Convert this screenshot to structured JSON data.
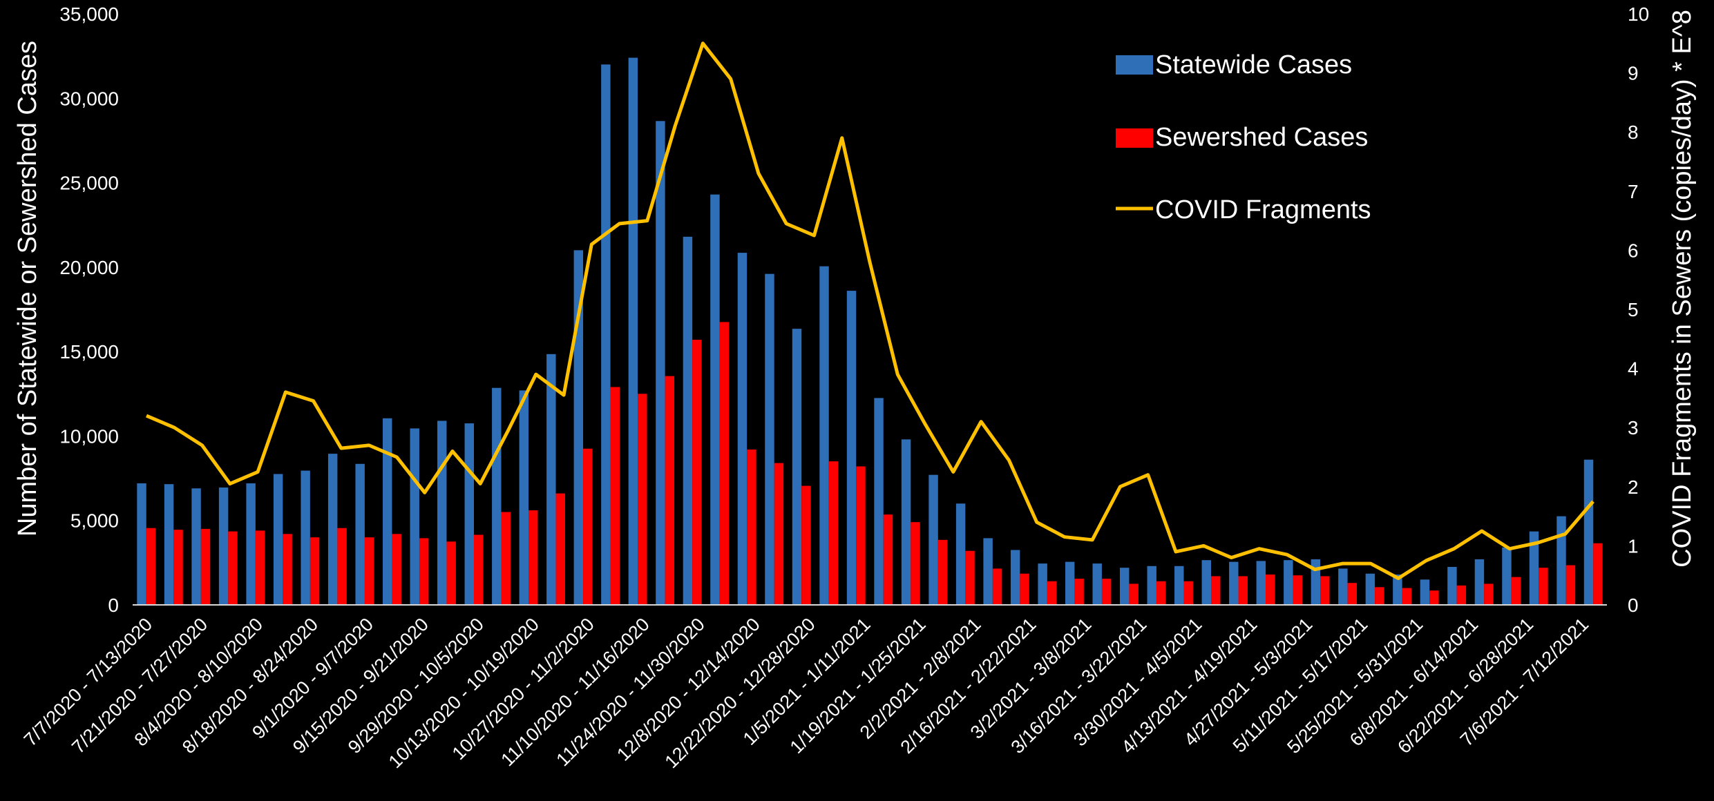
{
  "chart_data": {
    "type": "bar",
    "title": "",
    "y_left_label": "Number of Statewide or Sewershed Cases",
    "y_right_label": "COVID Fragments in Sewers (copies/day) * E^8",
    "y_left_range": [
      0,
      35000
    ],
    "y_left_ticks": [
      "0",
      "5,000",
      "10,000",
      "15,000",
      "20,000",
      "25,000",
      "30,000",
      "35,000"
    ],
    "y_right_range": [
      0,
      10
    ],
    "y_right_ticks": [
      "0",
      "1",
      "2",
      "3",
      "4",
      "5",
      "6",
      "7",
      "8",
      "9",
      "10"
    ],
    "grid": false,
    "legend_position": "top-right",
    "colors": {
      "statewide": "#2e6fb7",
      "sewershed": "#ff0000",
      "fragments": "#ffc000",
      "background": "#000000",
      "text": "#ffffff"
    },
    "tick_labels": [
      "7/7/2020 - 7/13/2020",
      "7/21/2020 - 7/27/2020",
      "8/4/2020 - 8/10/2020",
      "8/18/2020 - 8/24/2020",
      "9/1/2020 - 9/7/2020",
      "9/15/2020 - 9/21/2020",
      "9/29/2020 - 10/5/2020",
      "10/13/2020 - 10/19/2020",
      "10/27/2020 - 11/2/2020",
      "11/10/2020 - 11/16/2020",
      "11/24/2020 - 11/30/2020",
      "12/8/2020 - 12/14/2020",
      "12/22/2020 - 12/28/2020",
      "1/5/2021 - 1/11/2021",
      "1/19/2021 - 1/25/2021",
      "2/2/2021 - 2/8/2021",
      "2/16/2021 - 2/22/2021",
      "3/2/2021 - 3/8/2021",
      "3/16/2021 - 3/22/2021",
      "3/30/2021 - 4/5/2021",
      "4/13/2021 - 4/19/2021",
      "4/27/2021 - 5/3/2021",
      "5/11/2021 - 5/17/2021",
      "5/25/2021 - 5/31/2021",
      "6/8/2021 - 6/14/2021",
      "6/22/2021 - 6/28/2021",
      "7/6/2021 - 7/12/2021"
    ],
    "series": [
      {
        "name": "Statewide Cases",
        "type": "bar",
        "axis": "left",
        "values": [
          7200,
          7150,
          6900,
          6950,
          7200,
          7750,
          7950,
          8950,
          8350,
          11050,
          10450,
          10900,
          10750,
          12850,
          12700,
          14850,
          21000,
          32000,
          32400,
          28650,
          21800,
          24300,
          20850,
          19600,
          16350,
          20050,
          18600,
          12250,
          9800,
          7700,
          6000,
          3950,
          3250,
          2450,
          2550,
          2450,
          2200,
          2300,
          2300,
          2650,
          2550,
          2600,
          2650,
          2700,
          2150,
          1850,
          1800,
          1500,
          2250,
          2700,
          3400,
          4350,
          5250,
          8600
        ]
      },
      {
        "name": "Sewershed Cases",
        "type": "bar",
        "axis": "left",
        "values": [
          4550,
          4450,
          4500,
          4350,
          4400,
          4200,
          4000,
          4550,
          4000,
          4200,
          3950,
          3750,
          4150,
          5500,
          5600,
          6600,
          9250,
          12900,
          12500,
          13550,
          15700,
          16750,
          9200,
          8400,
          7050,
          8500,
          8200,
          5350,
          4900,
          3850,
          3200,
          2150,
          1850,
          1400,
          1550,
          1550,
          1250,
          1400,
          1400,
          1700,
          1700,
          1800,
          1750,
          1700,
          1300,
          1050,
          1000,
          850,
          1150,
          1250,
          1650,
          2200,
          2350,
          3650
        ]
      },
      {
        "name": "COVID Fragments",
        "type": "line",
        "axis": "right",
        "values": [
          3.2,
          3.0,
          2.7,
          2.05,
          2.25,
          3.6,
          3.45,
          2.65,
          2.7,
          2.5,
          1.9,
          2.6,
          2.05,
          2.95,
          3.9,
          3.55,
          6.1,
          6.45,
          6.5,
          8.1,
          9.5,
          8.9,
          7.3,
          6.45,
          6.25,
          7.9,
          5.8,
          3.9,
          3.05,
          2.25,
          3.1,
          2.45,
          1.4,
          1.15,
          1.1,
          2.0,
          2.2,
          0.9,
          1.0,
          0.8,
          0.95,
          0.85,
          0.6,
          0.7,
          0.7,
          0.45,
          0.75,
          0.95,
          1.25,
          0.95,
          1.05,
          1.2,
          1.75
        ]
      }
    ]
  }
}
